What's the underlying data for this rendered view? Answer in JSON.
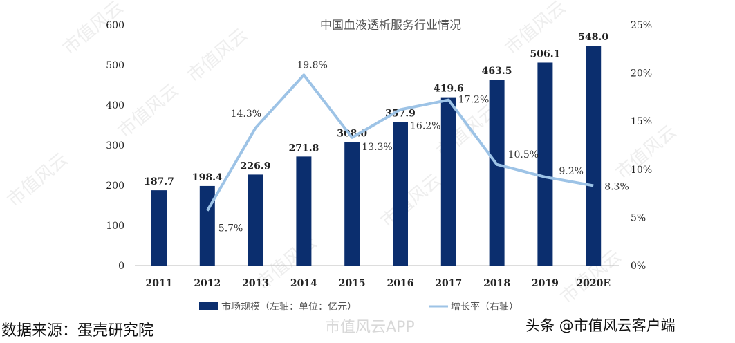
{
  "chart_data": {
    "type": "bar+line",
    "title": "中国血液透析服务行业情况",
    "categories": [
      "2011",
      "2012",
      "2013",
      "2014",
      "2015",
      "2016",
      "2017",
      "2018",
      "2019",
      "2020E"
    ],
    "series": [
      {
        "name": "市场规模（左轴：单位：亿元）",
        "type": "bar",
        "axis": "left",
        "color": "#0b2e6e",
        "values": [
          187.7,
          198.4,
          226.9,
          271.8,
          308.0,
          357.9,
          419.6,
          463.5,
          506.1,
          548.0
        ],
        "labels": [
          "187.7",
          "198.4",
          "226.9",
          "271.8",
          "308.0",
          "357.9",
          "419.6",
          "463.5",
          "506.1",
          "548.0"
        ]
      },
      {
        "name": "增长率（右轴）",
        "type": "line",
        "axis": "right",
        "color": "#9dc3e6",
        "values": [
          null,
          5.7,
          14.3,
          19.8,
          13.3,
          16.2,
          17.2,
          10.5,
          9.2,
          8.3
        ],
        "labels": [
          "",
          "5.7%",
          "14.3%",
          "19.8%",
          "13.3%",
          "16.2%",
          "17.2%",
          "10.5%",
          "9.2%",
          "8.3%"
        ]
      }
    ],
    "left_axis": {
      "ylim": [
        0,
        600
      ],
      "ticks": [
        "0",
        "100",
        "200",
        "300",
        "400",
        "500",
        "600"
      ]
    },
    "right_axis": {
      "ylim": [
        0,
        25
      ],
      "ticks": [
        "0%",
        "5%",
        "10%",
        "15%",
        "20%",
        "25%"
      ]
    },
    "grid": false,
    "legend": "bottom"
  },
  "source": "数据来源：蛋壳研究院",
  "watermark": {
    "app": "市值风云APP",
    "toutiao": "头条 @市值风云客户端",
    "tile": "市值风云"
  }
}
